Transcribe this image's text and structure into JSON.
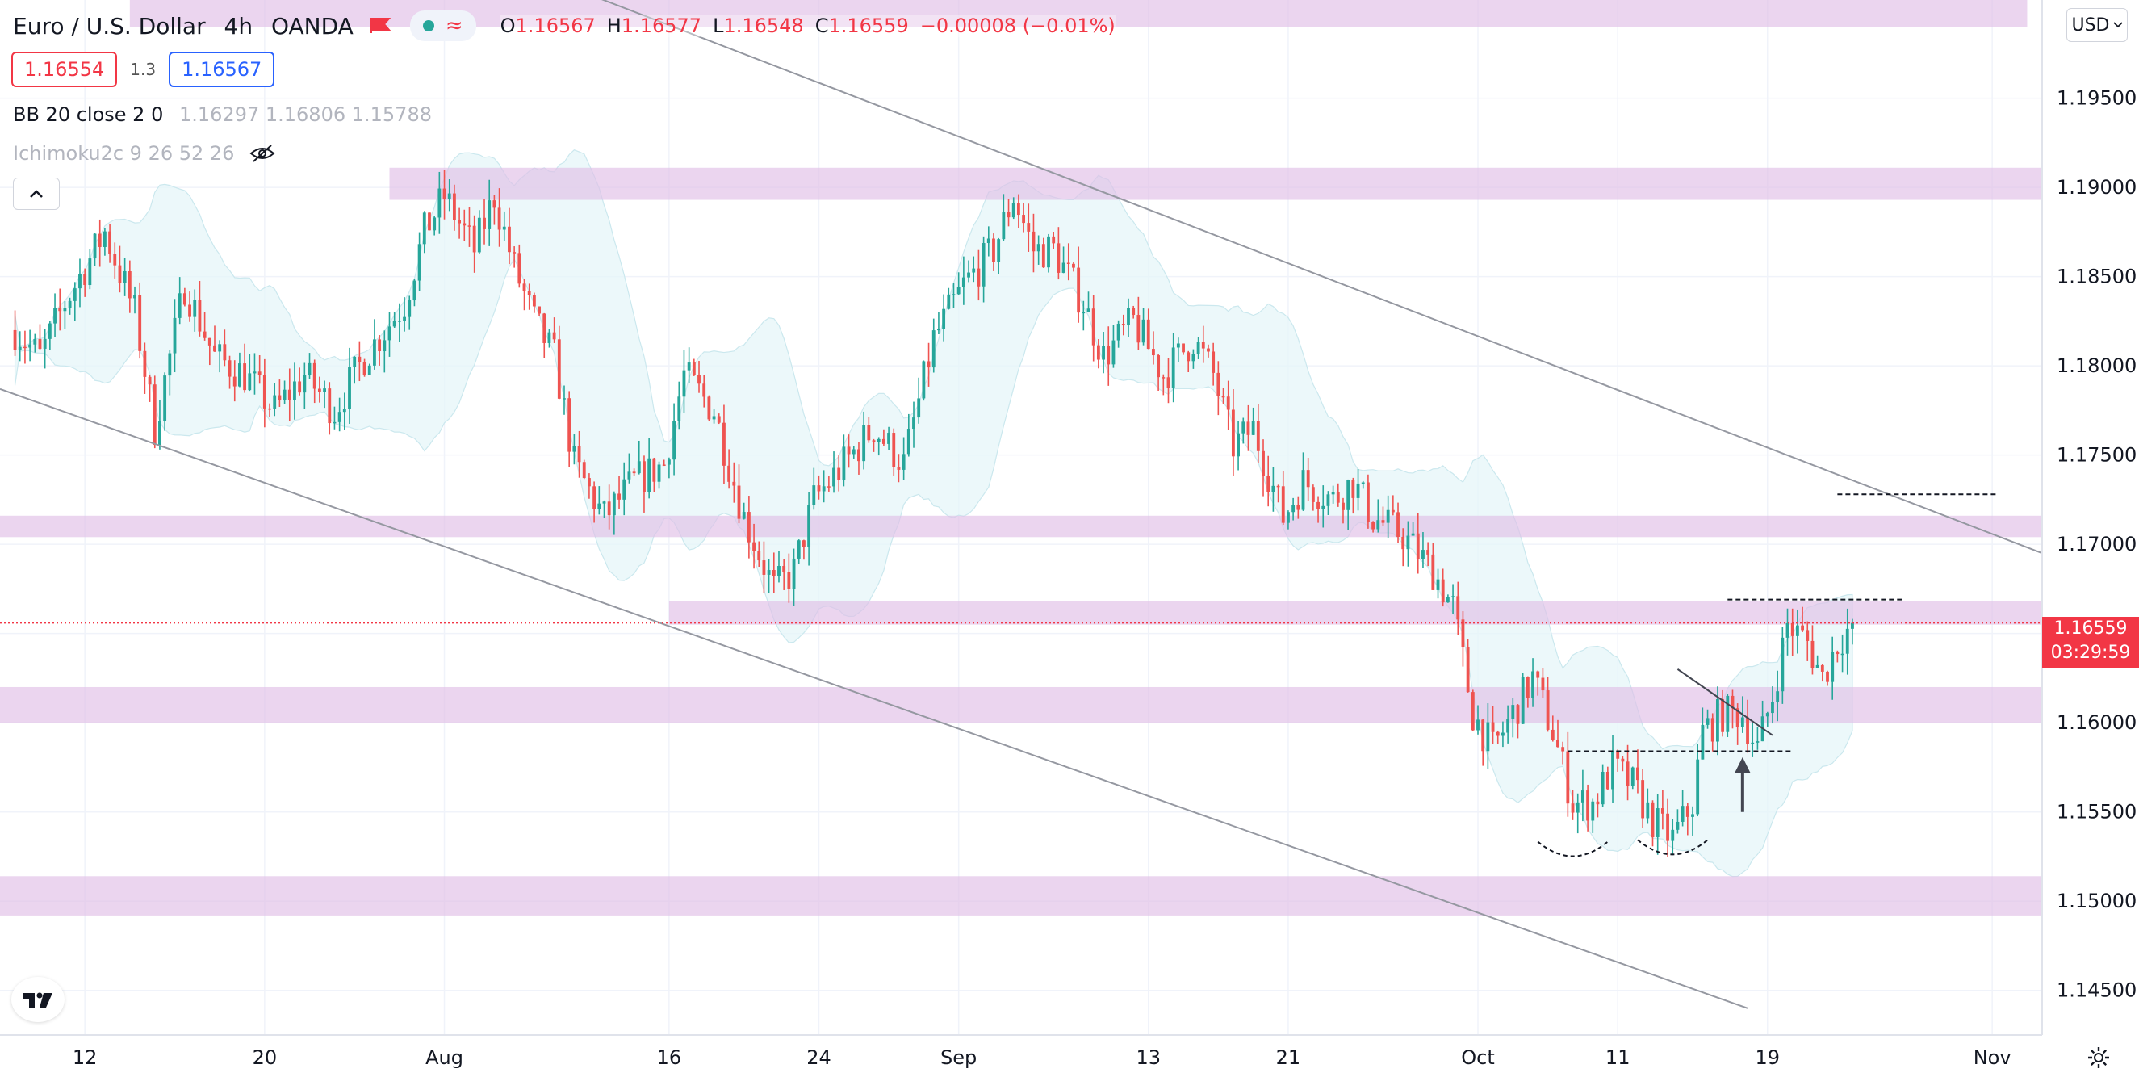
{
  "header": {
    "symbol": "Euro / U.S. Dollar",
    "interval": "4h",
    "exchange": "OANDA",
    "flag_color": "#f23645",
    "ohlc": {
      "o_label": "O",
      "o": "1.16567",
      "h_label": "H",
      "h": "1.16577",
      "l_label": "L",
      "l": "1.16548",
      "c_label": "C",
      "c": "1.16559",
      "change": "−0.00008 (−0.01%)"
    },
    "bid": "1.16554",
    "spread": "1.3",
    "ask": "1.16567"
  },
  "indicators": {
    "bb_label": "BB 20 close 2 0",
    "bb_values": "1.16297  1.16806  1.15788",
    "ichimoku_label": "Ichimoku2c 9 26 52 26"
  },
  "currency_button": "USD",
  "last_price_tag": {
    "price": "1.16559",
    "countdown": "03:29:59"
  },
  "colors": {
    "up": "#26a69a",
    "down": "#ef5350",
    "zone": "#e1bee7",
    "bb_fill": "#e6f6f8",
    "trend": "#9598a1",
    "accent_red": "#f23645",
    "accent_blue": "#2962ff"
  },
  "chart_data": {
    "type": "candlestick",
    "symbol": "EURUSD",
    "timeframe": "4h",
    "ylim": [
      1.1425,
      1.2005
    ],
    "yticks": [
      1.145,
      1.15,
      1.155,
      1.16,
      1.165,
      1.17,
      1.175,
      1.18,
      1.185,
      1.19,
      1.195
    ],
    "ytick_labels": [
      "1.14500",
      "1.15000",
      "1.15500",
      "1.16000",
      "1.16500",
      "1.17000",
      "1.17500",
      "1.18000",
      "1.18500",
      "1.19000",
      "1.19500"
    ],
    "xticks": [
      {
        "label": "12",
        "index": 14
      },
      {
        "label": "20",
        "index": 50
      },
      {
        "label": "Aug",
        "index": 86
      },
      {
        "label": "16",
        "index": 131
      },
      {
        "label": "24",
        "index": 161
      },
      {
        "label": "Sep",
        "index": 189
      },
      {
        "label": "13",
        "index": 227
      },
      {
        "label": "21",
        "index": 255
      },
      {
        "label": "Oct",
        "index": 293
      },
      {
        "label": "11",
        "index": 321
      },
      {
        "label": "19",
        "index": 351
      },
      {
        "label": "Nov",
        "index": 396
      }
    ],
    "x_range": [
      -3,
      406
    ],
    "keypoints": [
      [
        0,
        1.182
      ],
      [
        5,
        1.1805
      ],
      [
        10,
        1.1835
      ],
      [
        18,
        1.1875
      ],
      [
        24,
        1.183
      ],
      [
        28,
        1.1765
      ],
      [
        34,
        1.1845
      ],
      [
        40,
        1.1805
      ],
      [
        46,
        1.1795
      ],
      [
        52,
        1.1775
      ],
      [
        58,
        1.1795
      ],
      [
        64,
        1.1775
      ],
      [
        70,
        1.1805
      ],
      [
        78,
        1.1835
      ],
      [
        82,
        1.1875
      ],
      [
        86,
        1.1895
      ],
      [
        92,
        1.1865
      ],
      [
        96,
        1.1895
      ],
      [
        100,
        1.1855
      ],
      [
        104,
        1.1825
      ],
      [
        108,
        1.1805
      ],
      [
        112,
        1.1745
      ],
      [
        118,
        1.1715
      ],
      [
        124,
        1.1735
      ],
      [
        130,
        1.1745
      ],
      [
        134,
        1.1795
      ],
      [
        140,
        1.1775
      ],
      [
        146,
        1.1715
      ],
      [
        152,
        1.1675
      ],
      [
        156,
        1.1685
      ],
      [
        160,
        1.1725
      ],
      [
        166,
        1.1745
      ],
      [
        172,
        1.1765
      ],
      [
        178,
        1.1745
      ],
      [
        184,
        1.1815
      ],
      [
        190,
        1.1845
      ],
      [
        196,
        1.1865
      ],
      [
        200,
        1.1895
      ],
      [
        204,
        1.1865
      ],
      [
        208,
        1.1865
      ],
      [
        214,
        1.1835
      ],
      [
        218,
        1.1805
      ],
      [
        224,
        1.1825
      ],
      [
        230,
        1.1795
      ],
      [
        236,
        1.1815
      ],
      [
        240,
        1.1795
      ],
      [
        244,
        1.1755
      ],
      [
        248,
        1.1765
      ],
      [
        254,
        1.1715
      ],
      [
        258,
        1.1735
      ],
      [
        264,
        1.1725
      ],
      [
        268,
        1.1735
      ],
      [
        272,
        1.1715
      ],
      [
        278,
        1.1705
      ],
      [
        284,
        1.1685
      ],
      [
        288,
        1.1665
      ],
      [
        292,
        1.1605
      ],
      [
        296,
        1.1585
      ],
      [
        300,
        1.1605
      ],
      [
        304,
        1.1625
      ],
      [
        308,
        1.1595
      ],
      [
        312,
        1.1555
      ],
      [
        316,
        1.1555
      ],
      [
        320,
        1.1575
      ],
      [
        324,
        1.1565
      ],
      [
        328,
        1.1545
      ],
      [
        332,
        1.1535
      ],
      [
        336,
        1.1555
      ],
      [
        338,
        1.1595
      ],
      [
        342,
        1.1605
      ],
      [
        346,
        1.1605
      ],
      [
        349,
        1.1585
      ],
      [
        352,
        1.1615
      ],
      [
        355,
        1.1655
      ],
      [
        359,
        1.1645
      ],
      [
        362,
        1.1625
      ],
      [
        365,
        1.1645
      ],
      [
        368,
        1.1655
      ]
    ],
    "last_index": 368,
    "last_close": 1.16559,
    "bollinger": {
      "period": 20,
      "stddev": 2
    },
    "zones": [
      {
        "y1": 1.199,
        "y2": 1.201,
        "from": 23,
        "to": 403
      },
      {
        "y1": 1.1893,
        "y2": 1.1911,
        "from": 75,
        "to": 406
      },
      {
        "y1": 1.1704,
        "y2": 1.1716,
        "from": -3,
        "to": 406
      },
      {
        "y1": 1.1655,
        "y2": 1.1668,
        "from": 131,
        "to": 406
      },
      {
        "y1": 1.16,
        "y2": 1.162,
        "from": -3,
        "to": 406
      },
      {
        "y1": 1.1492,
        "y2": 1.1514,
        "from": -3,
        "to": 406
      }
    ],
    "trendlines": [
      {
        "x1": 90,
        "y1": 1.2035,
        "x2": 406,
        "y2": 1.1695
      },
      {
        "x1": -3,
        "y1": 1.1787,
        "x2": 347,
        "y2": 1.144
      },
      {
        "x1": 333,
        "y1": 1.163,
        "x2": 352,
        "y2": 1.1593
      }
    ],
    "dashed_levels": [
      {
        "y": 1.1728,
        "from": 365,
        "to": 397
      },
      {
        "y": 1.1669,
        "from": 343,
        "to": 378
      },
      {
        "y": 1.1584,
        "from": 311,
        "to": 356
      }
    ],
    "arcs": [
      {
        "from": 305,
        "to": 319,
        "y": 1.1527
      },
      {
        "from": 325,
        "to": 339,
        "y": 1.1528
      }
    ],
    "arrow": {
      "index": 346,
      "y_from": 1.155,
      "y_to": 1.1578
    },
    "current_price_line": 1.16559
  }
}
